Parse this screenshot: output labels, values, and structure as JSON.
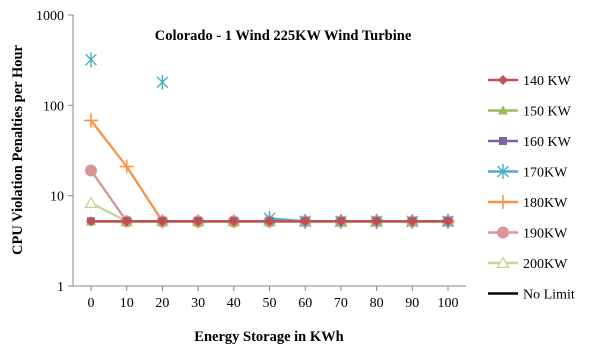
{
  "chart_data": {
    "type": "line",
    "title": "Colorado - 1 Wind 225KW Wind Turbine",
    "xlabel": "Energy Storage in KWh",
    "ylabel": "CPU Violation Penalties per Hour",
    "yscale": "log",
    "ylim": [
      1,
      1000
    ],
    "yticks": [
      "1",
      "10",
      "100",
      "1000"
    ],
    "x": [
      0,
      10,
      20,
      30,
      40,
      50,
      60,
      70,
      80,
      90,
      100
    ],
    "xticks": [
      "0",
      "10",
      "20",
      "30",
      "40",
      "50",
      "60",
      "70",
      "80",
      "90",
      "100"
    ],
    "legend_position": "right",
    "series": [
      {
        "name": "140 KW",
        "color": "#C0504D",
        "marker": "diamond",
        "values": [
          5.2,
          5.2,
          5.2,
          5.2,
          5.2,
          5.2,
          5.2,
          5.2,
          5.2,
          5.2,
          5.2
        ]
      },
      {
        "name": "150 KW",
        "color": "#9BBB59",
        "marker": "triangle",
        "values": [
          5.2,
          5.2,
          5.2,
          5.2,
          5.2,
          5.2,
          5.2,
          5.2,
          5.2,
          5.2,
          5.2
        ]
      },
      {
        "name": "160 KW",
        "color": "#8064A2",
        "marker": "square",
        "values": [
          5.2,
          5.2,
          5.2,
          5.2,
          5.2,
          5.2,
          5.2,
          5.2,
          5.2,
          5.2,
          5.2
        ]
      },
      {
        "name": "170KW",
        "color": "#4BACC6",
        "marker": "asterisk",
        "values": [
          320,
          null,
          180,
          null,
          null,
          5.6,
          5.2,
          5.2,
          5.2,
          5.2,
          5.2
        ]
      },
      {
        "name": "180KW",
        "color": "#F79646",
        "marker": "plus",
        "values": [
          68,
          21,
          5.2,
          5.2,
          5.2,
          5.2,
          5.2,
          5.2,
          5.2,
          5.2,
          5.2
        ]
      },
      {
        "name": "190KW",
        "color": "#D99694",
        "marker": "circle",
        "values": [
          19,
          5.2,
          5.2,
          5.2,
          5.2,
          5.2,
          5.2,
          5.2,
          5.2,
          5.2,
          5.2
        ]
      },
      {
        "name": "200KW",
        "color": "#C3D69B",
        "marker": "triangle-open",
        "values": [
          8.3,
          5.2,
          5.2,
          5.2,
          5.2,
          5.2,
          5.2,
          5.2,
          5.2,
          5.2,
          5.2
        ]
      },
      {
        "name": "No Limit",
        "color": "#000000",
        "marker": "none",
        "values": [
          5.2,
          5.2,
          5.2,
          5.2,
          5.2,
          5.2,
          5.2,
          5.2,
          5.2,
          5.2,
          5.2
        ]
      }
    ]
  }
}
